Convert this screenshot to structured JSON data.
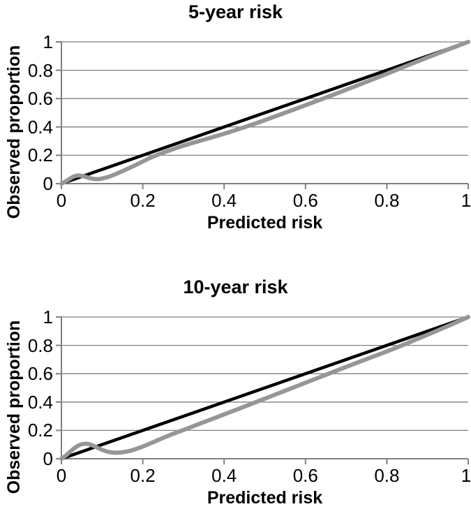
{
  "figure": {
    "background": "#ffffff",
    "text_color": "#000000",
    "gridline_color": "#808080",
    "axis_color": "#808080"
  },
  "chart_data": [
    {
      "type": "line",
      "title": "5-year risk",
      "xlabel": "Predicted risk",
      "ylabel": "Observed proportion",
      "xlim": [
        0,
        1
      ],
      "ylim": [
        0,
        1
      ],
      "x_ticks": [
        0,
        0.2,
        0.4,
        0.6,
        0.8,
        1
      ],
      "y_ticks": [
        0,
        0.2,
        0.4,
        0.6,
        0.8,
        1
      ],
      "x_tick_labels": [
        "0",
        "0.2",
        "0.4",
        "0.6",
        "0.8",
        "1"
      ],
      "y_tick_labels": [
        "0",
        "0.2",
        "0.4",
        "0.6",
        "0.8",
        "1"
      ],
      "grid": "horizontal",
      "legend": "none",
      "series": [
        {
          "name": "ideal-line",
          "color": "#000000",
          "stroke_width": 4.5,
          "points": [
            [
              0,
              0
            ],
            [
              1,
              1
            ]
          ]
        },
        {
          "name": "observed-calibration-curve",
          "color": "#969696",
          "stroke_width": 6,
          "points": [
            [
              0,
              0
            ],
            [
              0.01,
              0.015
            ],
            [
              0.02,
              0.033
            ],
            [
              0.03,
              0.05
            ],
            [
              0.04,
              0.058
            ],
            [
              0.05,
              0.055
            ],
            [
              0.06,
              0.047
            ],
            [
              0.07,
              0.039
            ],
            [
              0.08,
              0.033
            ],
            [
              0.09,
              0.032
            ],
            [
              0.1,
              0.036
            ],
            [
              0.12,
              0.052
            ],
            [
              0.15,
              0.088
            ],
            [
              0.18,
              0.128
            ],
            [
              0.2,
              0.156
            ],
            [
              0.22,
              0.184
            ],
            [
              0.25,
              0.218
            ],
            [
              0.3,
              0.268
            ],
            [
              0.35,
              0.31
            ],
            [
              0.4,
              0.352
            ],
            [
              0.45,
              0.398
            ],
            [
              0.5,
              0.448
            ],
            [
              0.55,
              0.5
            ],
            [
              0.6,
              0.553
            ],
            [
              0.65,
              0.607
            ],
            [
              0.7,
              0.662
            ],
            [
              0.75,
              0.718
            ],
            [
              0.8,
              0.775
            ],
            [
              0.85,
              0.833
            ],
            [
              0.9,
              0.89
            ],
            [
              0.95,
              0.946
            ],
            [
              1,
              1
            ]
          ]
        }
      ]
    },
    {
      "type": "line",
      "title": "10-year risk",
      "xlabel": "Predicted risk",
      "ylabel": "Observed proportion",
      "xlim": [
        0,
        1
      ],
      "ylim": [
        0,
        1
      ],
      "x_ticks": [
        0,
        0.2,
        0.4,
        0.6,
        0.8,
        1
      ],
      "y_ticks": [
        0,
        0.2,
        0.4,
        0.6,
        0.8,
        1
      ],
      "x_tick_labels": [
        "0",
        "0.2",
        "0.4",
        "0.6",
        "0.8",
        "1"
      ],
      "y_tick_labels": [
        "0",
        "0.2",
        "0.4",
        "0.6",
        "0.8",
        "1"
      ],
      "grid": "horizontal",
      "legend": "none",
      "series": [
        {
          "name": "ideal-line",
          "color": "#000000",
          "stroke_width": 4.5,
          "points": [
            [
              0,
              0
            ],
            [
              1,
              1
            ]
          ]
        },
        {
          "name": "observed-calibration-curve",
          "color": "#969696",
          "stroke_width": 6,
          "points": [
            [
              0,
              0
            ],
            [
              0.01,
              0.02
            ],
            [
              0.02,
              0.046
            ],
            [
              0.03,
              0.07
            ],
            [
              0.04,
              0.09
            ],
            [
              0.05,
              0.102
            ],
            [
              0.06,
              0.106
            ],
            [
              0.07,
              0.101
            ],
            [
              0.08,
              0.09
            ],
            [
              0.09,
              0.076
            ],
            [
              0.1,
              0.063
            ],
            [
              0.11,
              0.053
            ],
            [
              0.12,
              0.046
            ],
            [
              0.13,
              0.043
            ],
            [
              0.14,
              0.043
            ],
            [
              0.15,
              0.046
            ],
            [
              0.17,
              0.057
            ],
            [
              0.2,
              0.086
            ],
            [
              0.22,
              0.11
            ],
            [
              0.25,
              0.147
            ],
            [
              0.28,
              0.182
            ],
            [
              0.3,
              0.203
            ],
            [
              0.35,
              0.258
            ],
            [
              0.4,
              0.313
            ],
            [
              0.45,
              0.368
            ],
            [
              0.5,
              0.424
            ],
            [
              0.55,
              0.48
            ],
            [
              0.6,
              0.536
            ],
            [
              0.65,
              0.592
            ],
            [
              0.7,
              0.648
            ],
            [
              0.75,
              0.703
            ],
            [
              0.8,
              0.757
            ],
            [
              0.85,
              0.815
            ],
            [
              0.9,
              0.875
            ],
            [
              0.95,
              0.936
            ],
            [
              1,
              1
            ]
          ]
        }
      ]
    }
  ]
}
